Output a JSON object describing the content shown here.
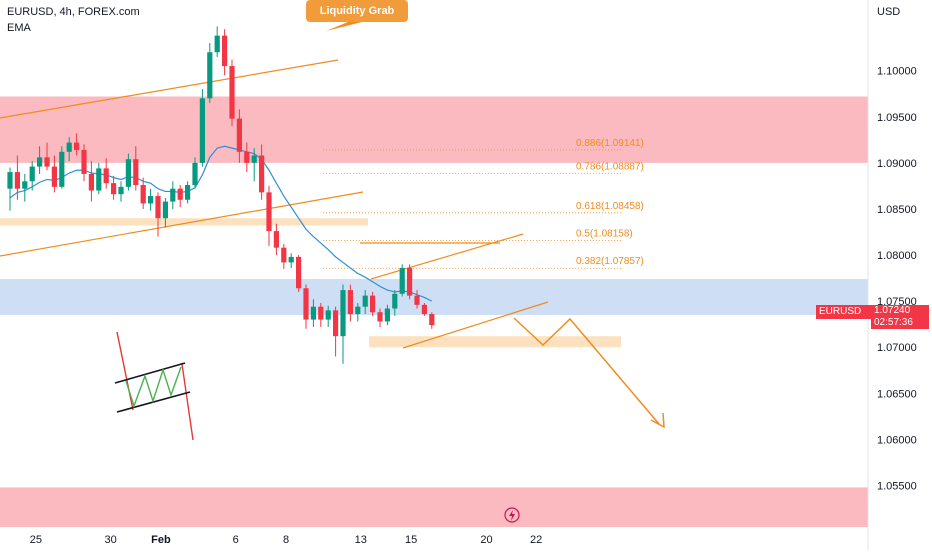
{
  "header": {
    "symbol_title": "EURUSD, 4h, FOREX.com",
    "indicator": "EMA",
    "currency": "USD"
  },
  "annotations": {
    "callout": "Liquidity Grab",
    "pair_badge": "EURUSD",
    "price": "1.07240",
    "countdown": "02:57:36"
  },
  "chart_data": {
    "type": "candlestick",
    "symbol": "EURUSD",
    "timeframe": "4h",
    "ylim": [
      1.0505,
      1.1068
    ],
    "y_ticks": [
      1.055,
      1.06,
      1.065,
      1.07,
      1.075,
      1.08,
      1.085,
      1.09,
      1.095,
      1.1
    ],
    "y_tick_labels": [
      "1.05500",
      "1.06000",
      "1.06500",
      "1.07000",
      "1.07500",
      "1.08000",
      "1.08500",
      "1.09000",
      "1.09500",
      "1.10000"
    ],
    "x_ticks": [
      {
        "label": "25",
        "index": 3.5
      },
      {
        "label": "30",
        "index": 13.6
      },
      {
        "label": "Feb",
        "index": 20.4
      },
      {
        "label": "6",
        "index": 30.5
      },
      {
        "label": "8",
        "index": 37.3
      },
      {
        "label": "13",
        "index": 47.4
      },
      {
        "label": "15",
        "index": 54.2
      },
      {
        "label": "20",
        "index": 64.4
      },
      {
        "label": "22",
        "index": 71.1
      }
    ],
    "last_price": 1.0724,
    "colors": {
      "up": "#089981",
      "down": "#f23645",
      "ema": "#2f8fd9",
      "orange": "#f08c1e",
      "supply_zone": "#f9b3b8",
      "demand_zone": "#c9dbf4",
      "support_zone": "#fcdcb6"
    },
    "candles": [
      [
        1.0872,
        1.0895,
        1.0848,
        1.089
      ],
      [
        1.089,
        1.0908,
        1.086,
        1.0872
      ],
      [
        1.0872,
        1.0888,
        1.0858,
        1.088
      ],
      [
        1.088,
        1.0902,
        1.087,
        1.0896
      ],
      [
        1.0896,
        1.0918,
        1.0888,
        1.0906
      ],
      [
        1.0906,
        1.0922,
        1.0892,
        1.0896
      ],
      [
        1.0896,
        1.0908,
        1.0868,
        1.0874
      ],
      [
        1.0874,
        1.0918,
        1.0872,
        1.0912
      ],
      [
        1.0912,
        1.0928,
        1.0902,
        1.0922
      ],
      [
        1.0922,
        1.0932,
        1.0908,
        1.0914
      ],
      [
        1.0914,
        1.092,
        1.088,
        1.0888
      ],
      [
        1.0888,
        1.0902,
        1.0858,
        1.087
      ],
      [
        1.087,
        1.09,
        1.0866,
        1.0894
      ],
      [
        1.0894,
        1.0905,
        1.0872,
        1.0878
      ],
      [
        1.0878,
        1.0886,
        1.086,
        1.0866
      ],
      [
        1.0866,
        1.088,
        1.0858,
        1.0874
      ],
      [
        1.0874,
        1.091,
        1.087,
        1.0904
      ],
      [
        1.0904,
        1.0918,
        1.087,
        1.0876
      ],
      [
        1.0876,
        1.0884,
        1.085,
        1.0856
      ],
      [
        1.0856,
        1.0872,
        1.0848,
        1.0864
      ],
      [
        1.0864,
        1.0868,
        1.082,
        1.084
      ],
      [
        1.084,
        1.0862,
        1.083,
        1.0858
      ],
      [
        1.0858,
        1.088,
        1.085,
        1.0872
      ],
      [
        1.0872,
        1.0876,
        1.0852,
        1.086
      ],
      [
        1.086,
        1.088,
        1.0856,
        1.0876
      ],
      [
        1.0876,
        1.0906,
        1.0872,
        1.09
      ],
      [
        1.09,
        1.098,
        1.0896,
        1.097
      ],
      [
        1.097,
        1.103,
        1.0965,
        1.102
      ],
      [
        1.102,
        1.1048,
        1.1015,
        1.1038
      ],
      [
        1.1038,
        1.1045,
        1.0995,
        1.1005
      ],
      [
        1.1005,
        1.1012,
        1.094,
        1.0948
      ],
      [
        1.0948,
        1.0958,
        1.09,
        1.0912
      ],
      [
        1.0912,
        1.0922,
        1.089,
        1.09
      ],
      [
        1.09,
        1.0916,
        1.088,
        1.0908
      ],
      [
        1.0908,
        1.092,
        1.086,
        1.0868
      ],
      [
        1.0868,
        1.0875,
        1.081,
        1.0826
      ],
      [
        1.0826,
        1.0834,
        1.08,
        1.0808
      ],
      [
        1.0808,
        1.0812,
        1.0785,
        1.0792
      ],
      [
        1.0792,
        1.0802,
        1.0786,
        1.0798
      ],
      [
        1.0798,
        1.08,
        1.076,
        1.0764
      ],
      [
        1.0764,
        1.0768,
        1.072,
        1.073
      ],
      [
        1.073,
        1.0752,
        1.0722,
        1.0744
      ],
      [
        1.0744,
        1.0748,
        1.0722,
        1.073
      ],
      [
        1.073,
        1.0745,
        1.0722,
        1.074
      ],
      [
        1.074,
        1.0744,
        1.069,
        1.0712
      ],
      [
        1.0712,
        1.0768,
        1.0682,
        1.0762
      ],
      [
        1.0762,
        1.0768,
        1.0728,
        1.0736
      ],
      [
        1.0736,
        1.0748,
        1.0728,
        1.0744
      ],
      [
        1.0744,
        1.0762,
        1.0736,
        1.0756
      ],
      [
        1.0756,
        1.076,
        1.0734,
        1.0738
      ],
      [
        1.0738,
        1.0742,
        1.0722,
        1.0728
      ],
      [
        1.0728,
        1.0746,
        1.0724,
        1.0742
      ],
      [
        1.0742,
        1.0762,
        1.0734,
        1.0758
      ],
      [
        1.0758,
        1.079,
        1.0755,
        1.0786
      ],
      [
        1.0786,
        1.079,
        1.0752,
        1.0756
      ],
      [
        1.0756,
        1.0762,
        1.0742,
        1.0746
      ],
      [
        1.0746,
        1.0748,
        1.0734,
        1.0736
      ],
      [
        1.0736,
        1.0738,
        1.072,
        1.0724
      ]
    ],
    "ema": [
      1.0862,
      1.0868,
      1.087,
      1.0874,
      1.0879,
      1.0882,
      1.0881,
      1.0884,
      1.0889,
      1.0892,
      1.0892,
      1.0889,
      1.0888,
      1.0887,
      1.0884,
      1.0882,
      1.0885,
      1.0884,
      1.088,
      1.0878,
      1.0872,
      1.0869,
      1.0869,
      1.0868,
      1.0869,
      1.0873,
      1.0887,
      1.0906,
      1.0916,
      1.0918,
      1.0916,
      1.0914,
      1.0912,
      1.091,
      1.0904,
      1.0892,
      1.0878,
      1.0864,
      1.0852,
      1.084,
      1.0828,
      1.082,
      1.0813,
      1.0806,
      1.0798,
      1.0792,
      1.0786,
      1.078,
      1.0776,
      1.0771,
      1.0766,
      1.0762,
      1.076,
      1.0761,
      1.076,
      1.0757,
      1.0754,
      1.075
    ],
    "zones": [
      {
        "name": "supply",
        "from": 1.09,
        "to": 1.0972
      },
      {
        "name": "support",
        "from": 1.0832,
        "to": 1.084
      },
      {
        "name": "demand",
        "from": 1.0735,
        "to": 1.0774
      },
      {
        "name": "support-2",
        "from": 1.07,
        "to": 1.0712
      },
      {
        "name": "supply-low",
        "from": 1.0505,
        "to": 1.0548
      }
    ],
    "fibonacci": [
      {
        "label": "0.886(1.09141)",
        "price": 1.09141
      },
      {
        "label": "0.786(1.08887)",
        "price": 1.08887
      },
      {
        "label": "0.618(1.08458)",
        "price": 1.08458
      },
      {
        "label": "0.5(1.08158)",
        "price": 1.08158
      },
      {
        "label": "0.382(1.07857)",
        "price": 1.07857
      }
    ]
  }
}
